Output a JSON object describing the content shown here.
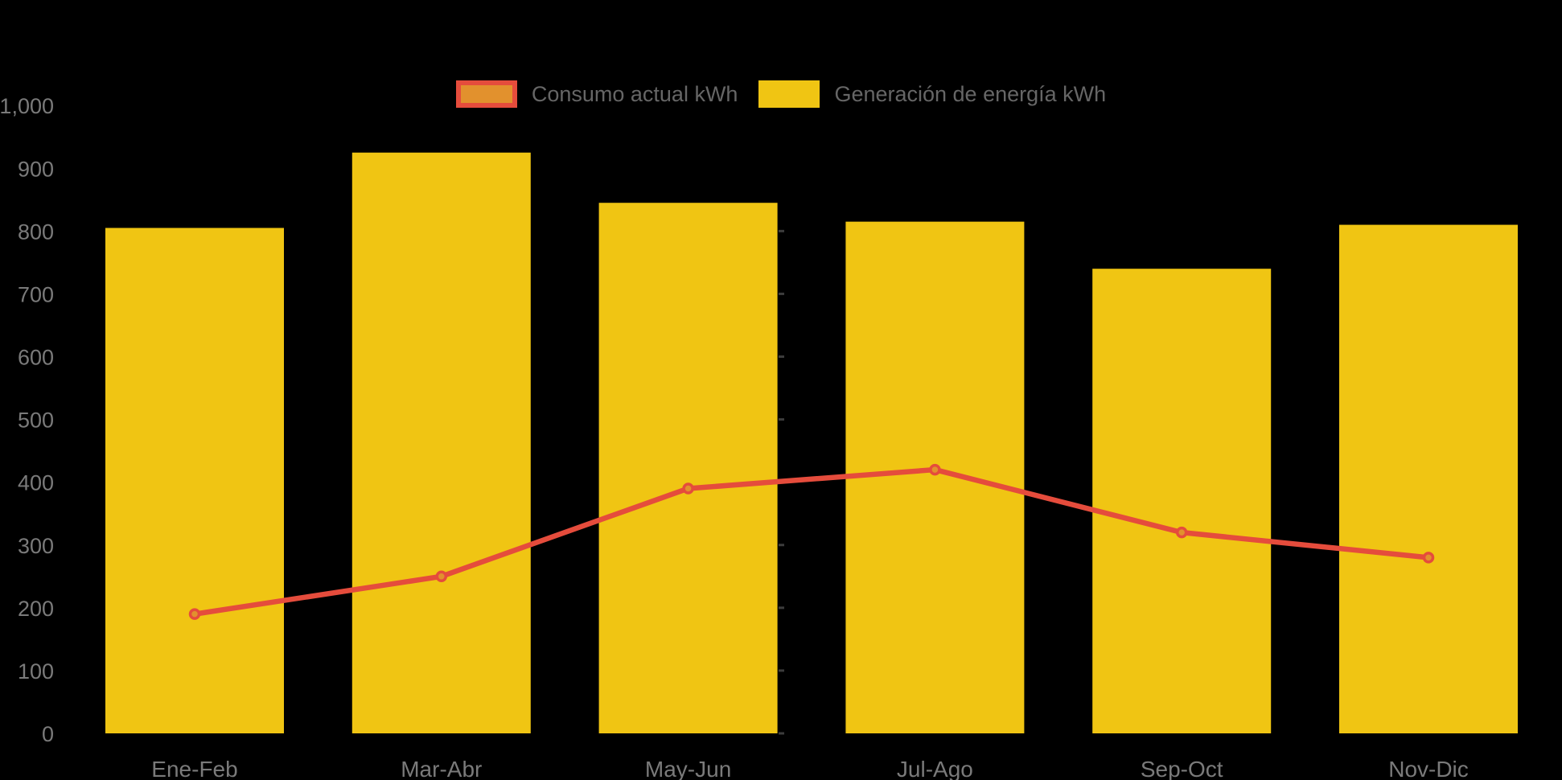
{
  "chart_data": {
    "type": "bar",
    "subtype": "combo-bar-line",
    "title": "",
    "xlabel": "",
    "ylabel": "",
    "categories": [
      "Ene-Feb",
      "Mar-Abr",
      "May-Jun",
      "Jul-Ago",
      "Sep-Oct",
      "Nov-Dic"
    ],
    "series": [
      {
        "name": "Consumo actual kWh",
        "type": "line",
        "values": [
          190,
          250,
          390,
          420,
          320,
          280
        ],
        "color": "#E54C3C",
        "marker_fill": "#E2912D"
      },
      {
        "name": "Generación de energía kWh",
        "type": "bar",
        "values": [
          805,
          925,
          845,
          815,
          740,
          810
        ],
        "color": "#F0C513"
      }
    ],
    "ylim": [
      0,
      1000
    ],
    "y_tick_step": 100,
    "y_tick_labels": [
      "0",
      "100",
      "200",
      "300",
      "400",
      "500",
      "600",
      "700",
      "800",
      "900",
      "1,000"
    ],
    "center_axis_tick_values": [
      0,
      100,
      200,
      300,
      400,
      500,
      600,
      700,
      800
    ],
    "grid": false,
    "legend_position": "top-center",
    "background_color": "#000000",
    "axis_label_color": "#7A7A7A",
    "legend_text_color": "#666666",
    "center_axis_tick_color": "#3C3C3C"
  },
  "legend": {
    "items": [
      {
        "label": "Consumo actual kWh"
      },
      {
        "label": "Generación de energía kWh"
      }
    ]
  }
}
